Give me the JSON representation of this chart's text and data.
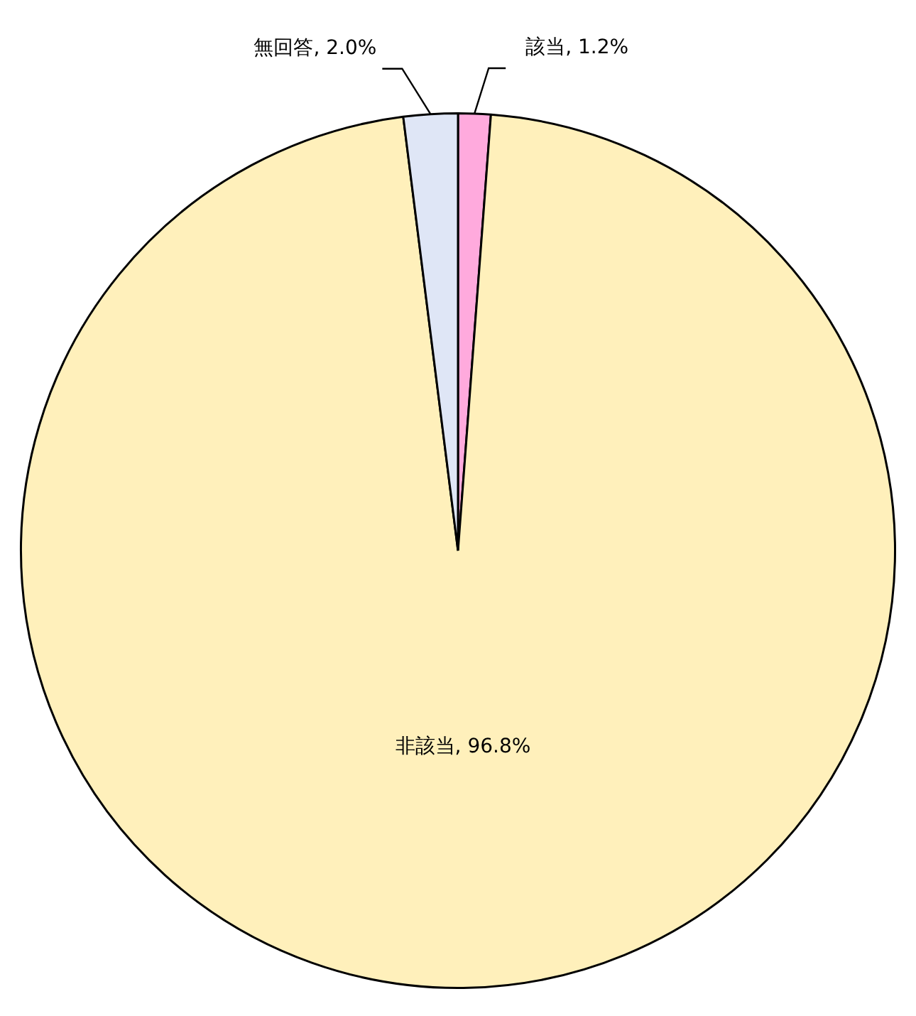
{
  "chart_data": {
    "type": "pie",
    "categories": [
      "該当",
      "非該当",
      "無回答"
    ],
    "values": [
      1.2,
      96.8,
      2.0
    ],
    "value_labels": [
      "1.2%",
      "96.8%",
      "2.0%"
    ],
    "colors": [
      "#ffaadd",
      "#fff0bb",
      "#dfe6f6"
    ],
    "legend": false
  }
}
